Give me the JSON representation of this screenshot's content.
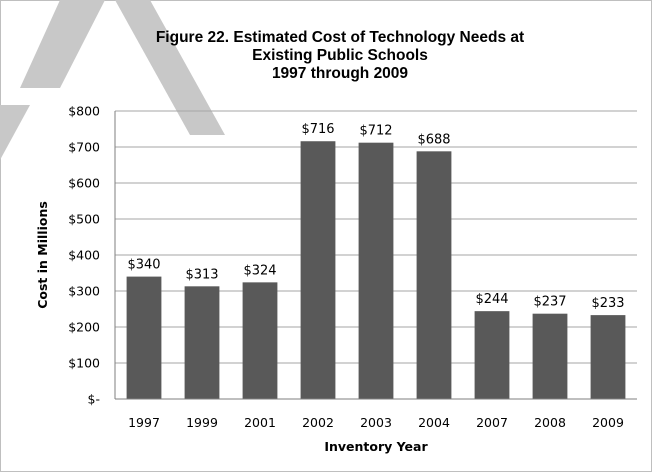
{
  "chart_data": {
    "type": "bar",
    "title": [
      "Figure 22. Estimated Cost of Technology Needs at",
      "Existing Public Schools",
      "1997 through 2009"
    ],
    "xlabel": "Inventory Year",
    "ylabel": "Cost in Millions",
    "categories": [
      "1997",
      "1999",
      "2001",
      "2002",
      "2003",
      "2004",
      "2007",
      "2008",
      "2009"
    ],
    "values": [
      340,
      313,
      324,
      716,
      712,
      688,
      244,
      237,
      233
    ],
    "value_labels": [
      "$340",
      "$313",
      "$324",
      "$716",
      "$712",
      "$688",
      "$244",
      "$237",
      "$233"
    ],
    "ylim": [
      0,
      800
    ],
    "yticks": [
      0,
      100,
      200,
      300,
      400,
      500,
      600,
      700,
      800
    ],
    "ytick_labels": [
      "$-",
      "$100",
      "$200",
      "$300",
      "$400",
      "$500",
      "$600",
      "$700",
      "$800"
    ],
    "grid": true,
    "legend": "none",
    "bar_color": "#595959",
    "gridline_color": "#a6a6a6",
    "watermark_color": "#c8c8c8"
  }
}
